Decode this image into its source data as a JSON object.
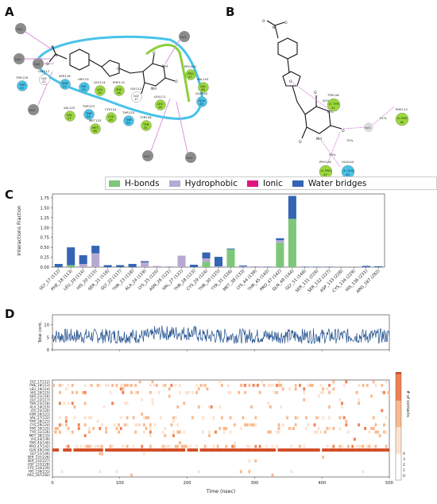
{
  "panels": {
    "a": {
      "letter": "A"
    },
    "b": {
      "letter": "B"
    },
    "c": {
      "letter": "C"
    },
    "d": {
      "letter": "D"
    }
  },
  "molecule_a": {
    "water_label": "H₂O",
    "residues": [
      {
        "name": "THR118",
        "code": "THR",
        "num": "23"
      },
      {
        "name": "GLY117",
        "code": "GLY",
        "num": "22"
      },
      {
        "name": "SER116",
        "code": "SER",
        "num": "21"
      },
      {
        "name": "HIE115",
        "code": "HIE",
        "num": "20"
      },
      {
        "name": "LEU114",
        "code": "LEU",
        "num": "19"
      },
      {
        "name": "PHE113",
        "code": "PHE",
        "num": "18"
      },
      {
        "name": "GLY112",
        "code": "GLY",
        "num": "17"
      },
      {
        "name": "LEU111",
        "code": "LEU",
        "num": "16"
      },
      {
        "name": "PRO142",
        "code": "PRO",
        "num": "47"
      },
      {
        "name": "VAL143",
        "code": "VAL",
        "num": "48"
      },
      {
        "name": "GLN144",
        "code": "GLN",
        "num": "49"
      },
      {
        "name": "VAL122",
        "code": "VAL",
        "num": "27"
      },
      {
        "name": "THR123",
        "code": "THR",
        "num": "28"
      },
      {
        "name": "CYS124",
        "code": "CYS",
        "num": "29"
      },
      {
        "name": "MET133",
        "code": "MET",
        "num": "38"
      },
      {
        "name": "THR125",
        "code": "THR",
        "num": "30"
      },
      {
        "name": "TYR126",
        "code": "TYR",
        "num": "31"
      }
    ],
    "atoms": {
      "O": "O",
      "N": "N",
      "NH": "NH",
      "H": "H"
    }
  },
  "molecule_b": {
    "atoms": {
      "O": "O",
      "N": "N",
      "NH": "NH",
      "H": "H"
    },
    "water_label": "H₂O",
    "residues": [
      {
        "name": "TYR126",
        "code": "X: TYR",
        "num": "31"
      },
      {
        "name": "PHE113",
        "code": "X: PHE",
        "num": "18"
      },
      {
        "name": "PRO142",
        "code": "X: PRO",
        "num": "47"
      },
      {
        "name": "GLN144",
        "code": "X: GLN",
        "num": "49"
      }
    ],
    "pcts": [
      "40%",
      "31%",
      "53%",
      "70%"
    ]
  },
  "chart_data": [
    {
      "type": "bar",
      "stacked": true,
      "legend": [
        "H-bonds",
        "Hydrophobic",
        "Ionic",
        "Water bridges"
      ],
      "legend_placement": "top-right",
      "colors": {
        "H-bonds": "#7dc77a",
        "Hydrophobic": "#b8a9d2",
        "Ionic": "#e0157f",
        "Water bridges": "#3465b4"
      },
      "ylabel": "Interactions Fraction",
      "ylim": [
        0,
        1.85
      ],
      "yticks": [
        "0.00",
        "0.25",
        "0.50",
        "0.75",
        "1.00",
        "1.25",
        "1.50",
        "1.75"
      ],
      "categories": [
        "GLY_17 (112)",
        "PHE_18 (113)",
        "LEU_19 (114)",
        "HIS_20 (115)",
        "SER_21 (116)",
        "GLY_22 (117)",
        "THR_23 (118)",
        "ALA_24 (119)",
        "LYS_25 (120)",
        "ASN_26 (121)",
        "VAL_27 (122)",
        "THR_28 (123)",
        "CYS_29 (124)",
        "THR_30 (125)",
        "TYR_31 (126)",
        "MET_38 (133)",
        "LYS_44 (139)",
        "THR_45 (140)",
        "PRO_47 (142)",
        "GLN_49 (144)",
        "GLY_51 (146)",
        "SER_131 (226)",
        "SER_132 (227)",
        "ASP_133 (228)",
        "CYS_134 (229)",
        "HIS_136 (231)",
        "ARG_187 (282)"
      ],
      "series": [
        {
          "name": "H-bonds",
          "values": [
            0,
            0.05,
            0,
            0,
            0,
            0,
            0,
            0,
            0,
            0,
            0,
            0,
            0.13,
            0,
            0.45,
            0,
            0,
            0,
            0.62,
            1.22,
            0,
            0,
            0,
            0,
            0,
            0,
            0
          ]
        },
        {
          "name": "Hydrophobic",
          "values": [
            0,
            0,
            0.08,
            0.35,
            0,
            0,
            0,
            0.12,
            0.03,
            0,
            0.29,
            0,
            0.09,
            0.02,
            0,
            0.02,
            0.02,
            0,
            0.06,
            0,
            0,
            0,
            0,
            0,
            0,
            0,
            0
          ]
        },
        {
          "name": "Ionic",
          "values": [
            0,
            0,
            0,
            0,
            0,
            0,
            0,
            0,
            0,
            0,
            0,
            0,
            0,
            0,
            0,
            0,
            0,
            0,
            0,
            0,
            0,
            0,
            0,
            0,
            0,
            0,
            0
          ]
        },
        {
          "name": "Water bridges",
          "values": [
            0.08,
            0.45,
            0.22,
            0.19,
            0.05,
            0.05,
            0.08,
            0.03,
            0,
            0.01,
            0,
            0.06,
            0.15,
            0.24,
            0.02,
            0.02,
            0,
            0.01,
            0.05,
            0.58,
            0.01,
            0.01,
            0.01,
            0,
            0,
            0.03,
            0.02
          ]
        }
      ]
    },
    {
      "type": "line",
      "ylabel": "Total cont.",
      "xlim": [
        0,
        500
      ],
      "ylim": [
        0,
        14
      ],
      "yticks": [
        "0",
        "5",
        "10"
      ],
      "mean_level": 5.5,
      "color": "#1f4e8c"
    },
    {
      "type": "heatmap",
      "xlabel": "Time (nsec)",
      "xlim": [
        0,
        500
      ],
      "xticks": [
        "0",
        "100",
        "200",
        "300",
        "400",
        "500"
      ],
      "rows": [
        "GLY_17(112)",
        "PHE_18(113)",
        "LEU_19(114)",
        "HIS_20(115)",
        "SER_21(116)",
        "GLY_22(117)",
        "THR_23(118)",
        "ALA_24(119)",
        "LYS_25(120)",
        "ASN_26(121)",
        "VAL_27(122)",
        "THR_28(123)",
        "CYS_29(124)",
        "THR_30(125)",
        "TYR_31(126)",
        "MET_38(133)",
        "LYS_44(139)",
        "THR_45(140)",
        "PRO_47(142)",
        "GLN_49(144)",
        "GLY_51(146)",
        "SER_131(226)",
        "SER_132(227)",
        "ASP_133(228)",
        "CYS_134(229)",
        "HIS_136(231)",
        "ARG_187(282)"
      ],
      "row_occupancy": [
        0.05,
        0.35,
        0.12,
        0.2,
        0.03,
        0.04,
        0.05,
        0.1,
        0.02,
        0.01,
        0.2,
        0.04,
        0.2,
        0.2,
        0.25,
        0.03,
        0.01,
        0.01,
        0.45,
        0.95,
        0.01,
        0.01,
        0.01,
        0.0,
        0.0,
        0.02,
        0.02
      ],
      "colorbar_label": "# of contacts",
      "colorbar_ticks": [
        "4",
        "3",
        "2",
        "1",
        "0"
      ]
    }
  ]
}
